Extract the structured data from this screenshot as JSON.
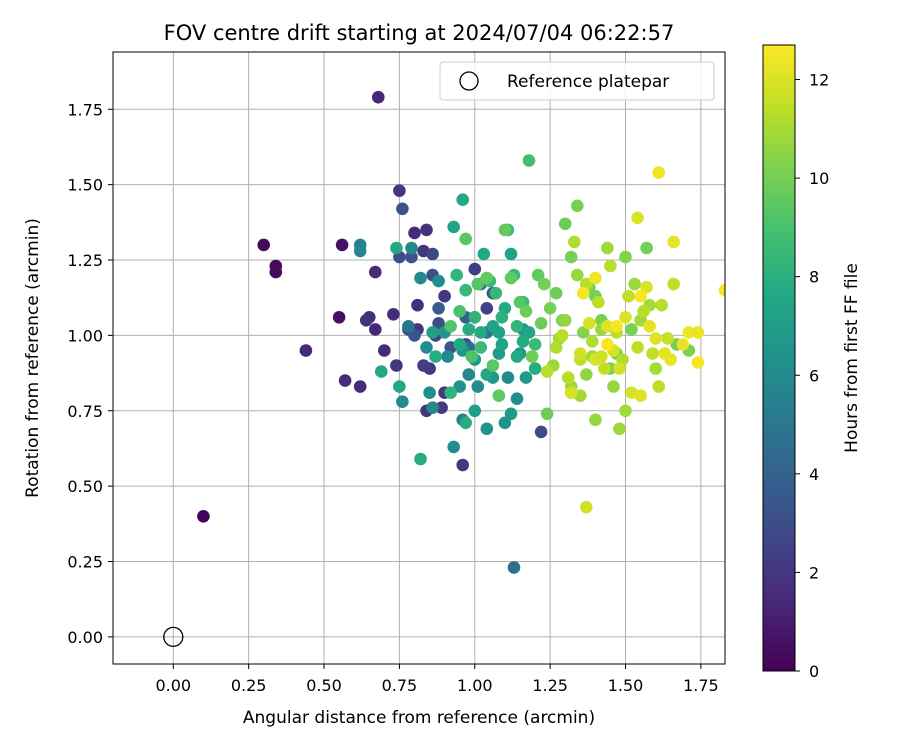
{
  "chart_data": {
    "type": "scatter",
    "title": "FOV centre drift starting at 2024/07/04 06:22:57",
    "xlabel": "Angular distance from reference (arcmin)",
    "ylabel": "Rotation from reference (arcmin)",
    "xlim": [
      -0.2,
      1.83
    ],
    "ylim": [
      -0.09,
      1.94
    ],
    "xticks": [
      "0.00",
      "0.25",
      "0.50",
      "0.75",
      "1.00",
      "1.25",
      "1.50",
      "1.75"
    ],
    "yticks": [
      "0.00",
      "0.25",
      "0.50",
      "0.75",
      "1.00",
      "1.25",
      "1.50",
      "1.75"
    ],
    "grid": true,
    "legend": {
      "position": "top-right",
      "entries": [
        "Reference platepar"
      ]
    },
    "reference_point": {
      "x": 0.0,
      "y": 0.0,
      "label": "Reference platepar"
    },
    "colorbar": {
      "label": "Hours from first FF file",
      "ticks": [
        "0",
        "2",
        "4",
        "6",
        "8",
        "10",
        "12"
      ],
      "range": [
        0,
        12.7
      ],
      "colormap": "viridis"
    },
    "series": [
      {
        "points": [
          [
            0.1,
            0.4,
            0.1
          ],
          [
            0.3,
            1.3,
            0.3
          ],
          [
            0.34,
            1.23,
            0.4
          ],
          [
            0.34,
            1.21,
            0.4
          ],
          [
            0.55,
            1.06,
            0.5
          ],
          [
            0.56,
            1.3,
            0.6
          ],
          [
            0.44,
            0.95,
            1.5
          ],
          [
            0.57,
            0.85,
            1.6
          ],
          [
            0.62,
            0.83,
            1.5
          ],
          [
            0.65,
            1.06,
            1.7
          ],
          [
            0.64,
            1.05,
            1.8
          ],
          [
            0.67,
            1.02,
            1.4
          ],
          [
            0.67,
            1.21,
            1.5
          ],
          [
            0.68,
            1.79,
            1.3
          ],
          [
            0.7,
            0.95,
            1.5
          ],
          [
            0.73,
            1.07,
            1.6
          ],
          [
            0.74,
            0.9,
            2.0
          ],
          [
            0.75,
            1.48,
            2.0
          ],
          [
            0.8,
            1.34,
            1.5
          ],
          [
            0.81,
            1.1,
            1.7
          ],
          [
            0.81,
            1.02,
            1.9
          ],
          [
            0.83,
            1.28,
            2.0
          ],
          [
            0.84,
            1.35,
            1.8
          ],
          [
            0.83,
            0.9,
            2.4
          ],
          [
            0.84,
            0.75,
            2.0
          ],
          [
            0.85,
            0.89,
            2.2
          ],
          [
            0.86,
            1.27,
            2.7
          ],
          [
            0.87,
            1.0,
            2.5
          ],
          [
            0.89,
            0.76,
            2.2
          ],
          [
            0.9,
            0.81,
            2.1
          ],
          [
            0.9,
            1.13,
            2.0
          ],
          [
            0.96,
            0.57,
            2.2
          ],
          [
            1.0,
            1.22,
            2.3
          ],
          [
            1.04,
            1.09,
            2.4
          ],
          [
            1.22,
            0.68,
            2.8
          ],
          [
            0.97,
            0.97,
            2.6
          ],
          [
            0.75,
            1.26,
            3.0
          ],
          [
            0.76,
            1.42,
            3.3
          ],
          [
            0.79,
            1.26,
            3.2
          ],
          [
            0.78,
            1.02,
            3.1
          ],
          [
            0.8,
            1.0,
            3.4
          ],
          [
            0.86,
            1.2,
            3.0
          ],
          [
            0.88,
            1.04,
            3.0
          ],
          [
            0.88,
            1.09,
            3.6
          ],
          [
            0.92,
            0.96,
            3.2
          ],
          [
            0.97,
            1.06,
            3.8
          ],
          [
            1.0,
            1.06,
            3.8
          ],
          [
            1.06,
            1.14,
            3.5
          ],
          [
            1.02,
            1.17,
            4.4
          ],
          [
            1.13,
            0.23,
            4.6
          ],
          [
            0.98,
            0.96,
            4.5
          ],
          [
            1.04,
            1.01,
            5.0
          ],
          [
            0.78,
            1.03,
            4.9
          ],
          [
            0.96,
            0.72,
            5.3
          ],
          [
            0.62,
            1.3,
            5.6
          ],
          [
            0.62,
            1.28,
            5.8
          ],
          [
            0.76,
            0.78,
            6.0
          ],
          [
            0.79,
            1.29,
            5.9
          ],
          [
            0.82,
            1.19,
            6.0
          ],
          [
            0.84,
            0.96,
            6.1
          ],
          [
            0.85,
            0.81,
            6.3
          ],
          [
            0.86,
            0.76,
            5.9
          ],
          [
            0.88,
            1.18,
            6.2
          ],
          [
            0.9,
            1.01,
            6.6
          ],
          [
            0.91,
            0.93,
            6.0
          ],
          [
            0.93,
            0.63,
            6.1
          ],
          [
            0.95,
            0.83,
            6.4
          ],
          [
            0.96,
            0.95,
            6.8
          ],
          [
            0.98,
            0.87,
            5.9
          ],
          [
            1.0,
            0.92,
            6.7
          ],
          [
            1.01,
            0.83,
            6.1
          ],
          [
            1.04,
            0.69,
            6.5
          ],
          [
            1.06,
            0.86,
            6.7
          ],
          [
            1.08,
            0.94,
            6.9
          ],
          [
            1.1,
            0.71,
            6.4
          ],
          [
            1.11,
            0.86,
            6.0
          ],
          [
            1.12,
            0.74,
            6.8
          ],
          [
            1.14,
            0.79,
            6.2
          ],
          [
            1.15,
            0.94,
            6.6
          ],
          [
            1.16,
            1.02,
            6.5
          ],
          [
            1.17,
            0.86,
            6.7
          ],
          [
            0.69,
            0.88,
            7.6
          ],
          [
            0.74,
            1.29,
            7.6
          ],
          [
            0.75,
            0.83,
            7.7
          ],
          [
            0.82,
            0.59,
            7.8
          ],
          [
            0.86,
            1.01,
            7.2
          ],
          [
            0.87,
            0.93,
            7.8
          ],
          [
            0.93,
            1.36,
            7.4
          ],
          [
            0.95,
            0.97,
            7.6
          ],
          [
            0.96,
            1.45,
            7.6
          ],
          [
            0.97,
            0.71,
            7.9
          ],
          [
            0.98,
            1.02,
            7.8
          ],
          [
            1.0,
            0.75,
            7.2
          ],
          [
            1.02,
            1.01,
            7.7
          ],
          [
            1.03,
            1.27,
            7.6
          ],
          [
            1.04,
            0.87,
            7.5
          ],
          [
            1.06,
            1.03,
            7.4
          ],
          [
            1.08,
            1.01,
            7.3
          ],
          [
            1.09,
            0.97,
            7.3
          ],
          [
            1.1,
            1.09,
            7.7
          ],
          [
            1.12,
            1.27,
            7.3
          ],
          [
            1.14,
            0.93,
            7.6
          ],
          [
            1.16,
            0.98,
            7.7
          ],
          [
            1.18,
            1.01,
            7.5
          ],
          [
            1.2,
            0.89,
            7.8
          ],
          [
            0.92,
            0.81,
            8.2
          ],
          [
            0.94,
            1.2,
            8.3
          ],
          [
            0.97,
            1.15,
            8.5
          ],
          [
            1.0,
            1.06,
            8.2
          ],
          [
            1.02,
            0.96,
            8.6
          ],
          [
            1.05,
            1.18,
            8.5
          ],
          [
            1.07,
            1.14,
            8.4
          ],
          [
            1.09,
            1.06,
            8.1
          ],
          [
            1.11,
            1.35,
            8.7
          ],
          [
            1.13,
            1.2,
            8.6
          ],
          [
            1.14,
            1.03,
            8.3
          ],
          [
            1.16,
            1.11,
            8.4
          ],
          [
            1.18,
            1.58,
            8.8
          ],
          [
            1.2,
            0.97,
            8.6
          ],
          [
            0.92,
            1.03,
            9.2
          ],
          [
            0.95,
            1.08,
            9.0
          ],
          [
            0.97,
            1.32,
            9.4
          ],
          [
            0.99,
            0.93,
            9.1
          ],
          [
            1.01,
            1.17,
            9.3
          ],
          [
            1.04,
            1.19,
            9.6
          ],
          [
            1.06,
            0.9,
            9.4
          ],
          [
            1.08,
            0.8,
            9.5
          ],
          [
            1.1,
            1.35,
            9.7
          ],
          [
            1.12,
            1.19,
            9.5
          ],
          [
            1.15,
            1.11,
            9.3
          ],
          [
            1.17,
            1.08,
            9.8
          ],
          [
            1.19,
            0.93,
            9.9
          ],
          [
            1.21,
            1.2,
            9.6
          ],
          [
            1.22,
            1.04,
            9.8
          ],
          [
            1.24,
            0.74,
            9.9
          ],
          [
            1.23,
            1.17,
            10.0
          ],
          [
            1.25,
            1.09,
            10.1
          ],
          [
            1.27,
            1.14,
            9.9
          ],
          [
            1.29,
            1.05,
            10.2
          ],
          [
            1.3,
            1.37,
            9.8
          ],
          [
            1.32,
            1.26,
            10.0
          ],
          [
            1.34,
            1.43,
            10.1
          ],
          [
            1.36,
            1.01,
            10.3
          ],
          [
            1.38,
            1.16,
            10.2
          ],
          [
            1.4,
            1.13,
            10.0
          ],
          [
            1.42,
            1.05,
            10.1
          ],
          [
            1.45,
            0.89,
            10.2
          ],
          [
            1.47,
            0.94,
            10.0
          ],
          [
            1.5,
            1.26,
            10.3
          ],
          [
            1.52,
            1.02,
            10.1
          ],
          [
            1.57,
            1.29,
            10.0
          ],
          [
            1.67,
            0.97,
            10.0
          ],
          [
            1.71,
            0.95,
            10.2
          ],
          [
            1.26,
            0.9,
            10.8
          ],
          [
            1.28,
            0.99,
            10.8
          ],
          [
            1.3,
            1.05,
            10.6
          ],
          [
            1.32,
            0.83,
            10.8
          ],
          [
            1.34,
            1.2,
            10.7
          ],
          [
            1.35,
            0.8,
            10.9
          ],
          [
            1.37,
            0.87,
            10.6
          ],
          [
            1.39,
            0.93,
            10.9
          ],
          [
            1.4,
            0.72,
            10.7
          ],
          [
            1.42,
            1.02,
            10.8
          ],
          [
            1.44,
            1.29,
            10.9
          ],
          [
            1.46,
            0.83,
            10.7
          ],
          [
            1.48,
            0.69,
            10.8
          ],
          [
            1.5,
            0.75,
            10.9
          ],
          [
            1.53,
            1.17,
            10.8
          ],
          [
            1.55,
            1.05,
            10.9
          ],
          [
            1.58,
            1.1,
            11.0
          ],
          [
            1.6,
            0.89,
            11.0
          ],
          [
            1.24,
            0.88,
            11.3
          ],
          [
            1.27,
            0.96,
            11.2
          ],
          [
            1.29,
            1.0,
            11.4
          ],
          [
            1.31,
            0.86,
            11.3
          ],
          [
            1.33,
            1.31,
            11.2
          ],
          [
            1.35,
            0.92,
            11.5
          ],
          [
            1.37,
            1.17,
            11.3
          ],
          [
            1.39,
            0.98,
            11.2
          ],
          [
            1.41,
            1.11,
            11.4
          ],
          [
            1.43,
            0.89,
            11.5
          ],
          [
            1.45,
            1.23,
            11.3
          ],
          [
            1.47,
            1.01,
            11.4
          ],
          [
            1.49,
            0.92,
            11.2
          ],
          [
            1.51,
            1.13,
            11.5
          ],
          [
            1.54,
            0.96,
            11.4
          ],
          [
            1.56,
            1.08,
            11.3
          ],
          [
            1.59,
            0.94,
            11.5
          ],
          [
            1.61,
            0.83,
            11.4
          ],
          [
            1.62,
            1.1,
            11.3
          ],
          [
            1.64,
            0.99,
            11.6
          ],
          [
            1.66,
            1.17,
            11.5
          ],
          [
            1.32,
            0.81,
            11.9
          ],
          [
            1.35,
            0.94,
            11.8
          ],
          [
            1.37,
            0.43,
            11.8
          ],
          [
            1.38,
            1.04,
            11.9
          ],
          [
            1.4,
            0.92,
            12.0
          ],
          [
            1.42,
            0.93,
            11.8
          ],
          [
            1.44,
            1.03,
            12.0
          ],
          [
            1.46,
            0.95,
            11.9
          ],
          [
            1.48,
            0.89,
            11.8
          ],
          [
            1.5,
            1.06,
            12.0
          ],
          [
            1.52,
            0.81,
            11.9
          ],
          [
            1.54,
            1.39,
            12.0
          ],
          [
            1.55,
            0.8,
            12.1
          ],
          [
            1.57,
            1.16,
            12.0
          ],
          [
            1.58,
            1.03,
            12.2
          ],
          [
            1.6,
            0.99,
            12.1
          ],
          [
            1.61,
            1.54,
            12.4
          ],
          [
            1.63,
            0.94,
            12.2
          ],
          [
            1.65,
            0.92,
            12.3
          ],
          [
            1.66,
            1.31,
            12.2
          ],
          [
            1.69,
            0.97,
            12.3
          ],
          [
            1.71,
            1.01,
            12.4
          ],
          [
            1.74,
            0.91,
            12.5
          ],
          [
            1.74,
            1.01,
            12.3
          ],
          [
            1.83,
            1.15,
            12.6
          ],
          [
            1.36,
            1.14,
            12.5
          ],
          [
            1.4,
            1.19,
            12.4
          ],
          [
            1.44,
            0.97,
            12.6
          ],
          [
            1.47,
            1.03,
            12.5
          ],
          [
            1.55,
            1.13,
            12.6
          ]
        ]
      }
    ]
  }
}
